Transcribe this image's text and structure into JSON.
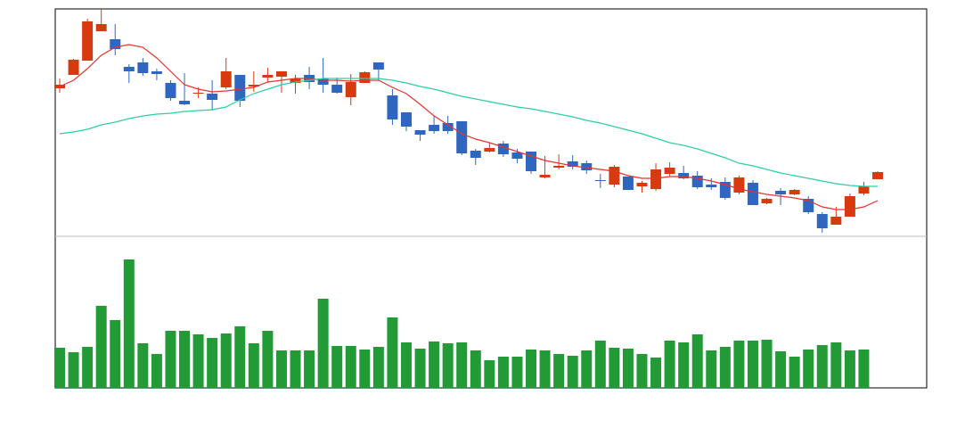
{
  "chart_data": [
    {
      "type": "candlestick",
      "up_color": "#d83a10",
      "down_color": "#2f67c0",
      "ylim": [
        0,
        255
      ],
      "open": [
        166,
        181,
        197,
        230,
        221,
        190,
        195,
        185,
        172,
        152,
        160,
        160,
        167,
        181,
        168,
        178,
        179,
        172,
        181,
        177,
        170,
        156,
        172,
        195,
        158,
        139,
        119,
        125,
        127,
        129,
        96,
        95,
        104,
        94,
        95,
        66,
        77,
        84,
        82,
        63,
        58,
        67,
        56,
        53,
        70,
        71,
        68,
        58,
        61,
        49,
        60,
        37,
        51,
        47,
        42,
        25,
        13,
        22,
        48,
        64
      ],
      "high": [
        177,
        199,
        244,
        255,
        238,
        193,
        200,
        188,
        175,
        183,
        167,
        175,
        200,
        181,
        185,
        189,
        185,
        181,
        190,
        200,
        178,
        182,
        185,
        195,
        165,
        139,
        119,
        135,
        135,
        129,
        98,
        105,
        107,
        98,
        95,
        90,
        92,
        91,
        85,
        70,
        80,
        67,
        62,
        82,
        83,
        79,
        73,
        65,
        66,
        68,
        63,
        43,
        54,
        53,
        45,
        27,
        33,
        48,
        61,
        73
      ],
      "low": [
        161,
        181,
        197,
        230,
        203,
        172,
        180,
        175,
        152,
        147,
        155,
        141,
        165,
        145,
        162,
        173,
        161,
        160,
        165,
        161,
        160,
        147,
        172,
        175,
        125,
        118,
        107,
        115,
        115,
        91,
        80,
        94,
        89,
        82,
        70,
        65,
        75,
        75,
        70,
        54,
        55,
        52,
        49,
        51,
        67,
        64,
        53,
        52,
        41,
        47,
        35,
        36,
        35,
        46,
        25,
        4,
        13,
        22,
        46,
        64
      ],
      "close": [
        170,
        198,
        241,
        238,
        210,
        185,
        183,
        182,
        155,
        148,
        161,
        153,
        185,
        152,
        170,
        181,
        185,
        177,
        173,
        170,
        161,
        173,
        184,
        187,
        131,
        123,
        114,
        118,
        118,
        93,
        88,
        99,
        92,
        87,
        73,
        69,
        79,
        78,
        74,
        62,
        78,
        52,
        60,
        75,
        77,
        65,
        55,
        55,
        43,
        66,
        35,
        42,
        47,
        52,
        27,
        9,
        22,
        45,
        56,
        72
      ],
      "series": [
        {
          "color": "#e8322e",
          "values": [
            168,
            175,
            188,
            203,
            212,
            215,
            212,
            200,
            185,
            170,
            165,
            162,
            163,
            165,
            167,
            173,
            175,
            177,
            177,
            175,
            175,
            174,
            175,
            175,
            167,
            160,
            148,
            135,
            125,
            115,
            109,
            105,
            100,
            95,
            90,
            85,
            82,
            79,
            77,
            75,
            73,
            68,
            65,
            65,
            67,
            67,
            65,
            62,
            58,
            53,
            50,
            47,
            45,
            43,
            40,
            33,
            30,
            30,
            33,
            40
          ]
        },
        {
          "color": "#2ad0a0",
          "values": [
            115,
            117,
            120,
            125,
            128,
            132,
            135,
            137,
            138,
            140,
            141,
            142,
            145,
            153,
            160,
            165,
            170,
            173,
            175,
            177,
            177,
            177,
            177,
            177,
            175,
            172,
            168,
            165,
            161,
            157,
            154,
            151,
            148,
            145,
            143,
            140,
            137,
            134,
            130,
            127,
            123,
            119,
            115,
            110,
            105,
            102,
            98,
            93,
            88,
            82,
            79,
            75,
            71,
            68,
            65,
            62,
            59,
            57,
            56,
            56
          ]
        }
      ]
    },
    {
      "type": "bar",
      "color": "#229a36",
      "ylim": [
        0,
        170
      ],
      "values": [
        45,
        40,
        46,
        92,
        76,
        144,
        50,
        38,
        64,
        64,
        60,
        56,
        61,
        69,
        50,
        64,
        42,
        42,
        42,
        100,
        47,
        47,
        43,
        46,
        79,
        51,
        44,
        52,
        50,
        51,
        42,
        31,
        35,
        35,
        43,
        42,
        38,
        36,
        42,
        53,
        45,
        44,
        38,
        34,
        53,
        51,
        60,
        42,
        46,
        53,
        53,
        54,
        41,
        35,
        43,
        48,
        51,
        42,
        43,
        null
      ]
    }
  ]
}
